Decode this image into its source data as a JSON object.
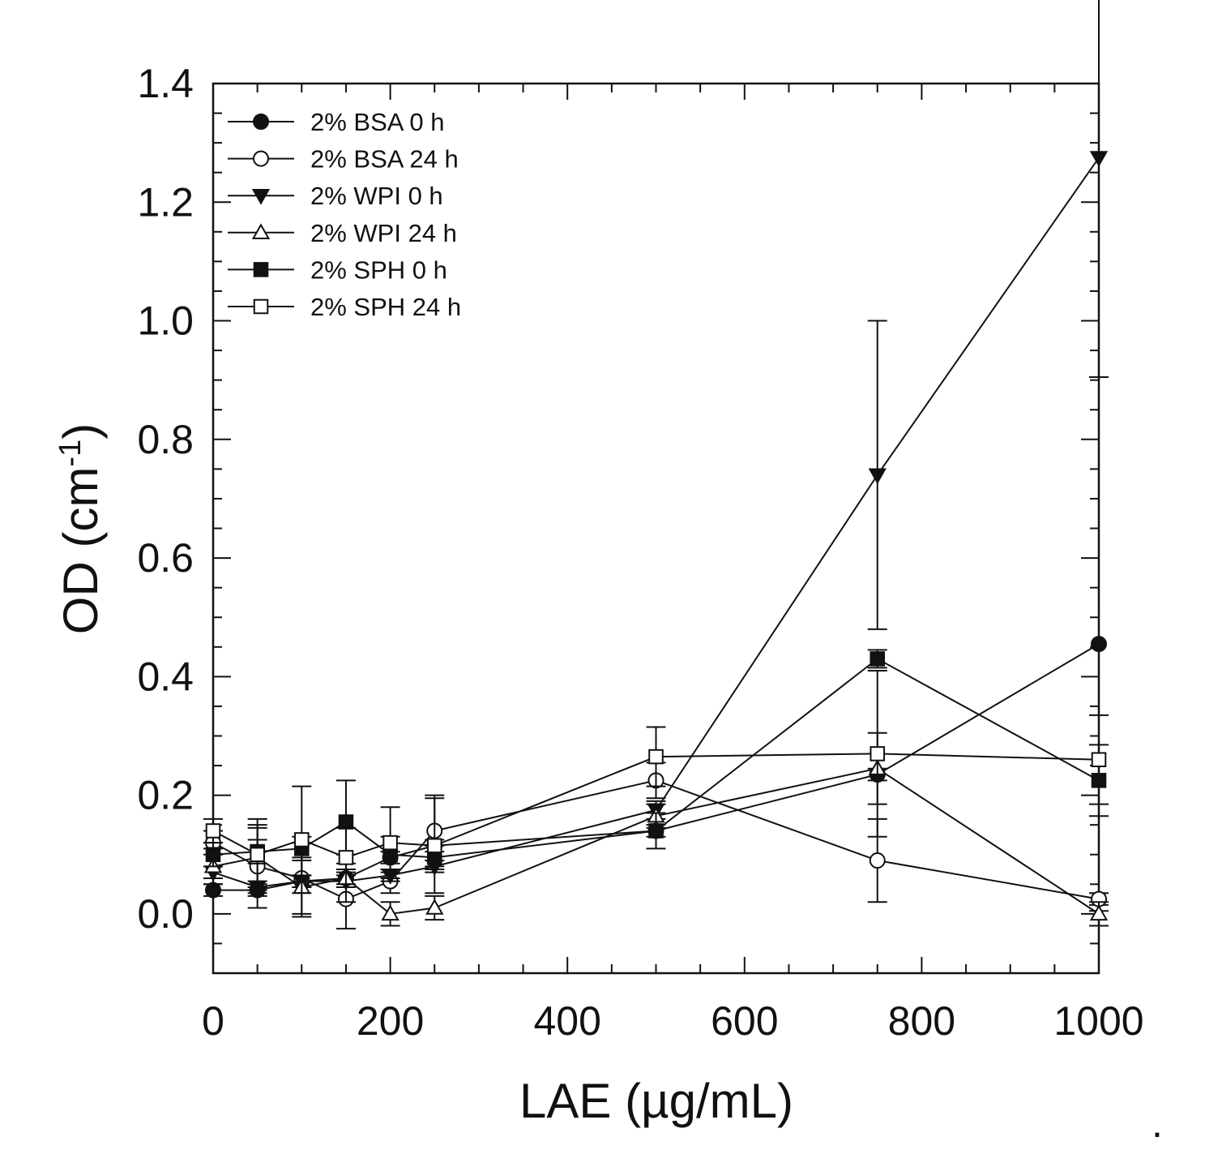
{
  "chart_data": {
    "type": "line",
    "title": "",
    "xlabel": "LAE (µg/mL)",
    "ylabel": "OD (cm",
    "ylabel_sup": "-1",
    "ylabel_end": ")",
    "xlim": [
      0,
      1000
    ],
    "ylim": [
      -0.1,
      1.4
    ],
    "x_ticks": [
      0,
      200,
      400,
      600,
      800,
      1000
    ],
    "x_tick_labels": [
      "0",
      "200",
      "400",
      "600",
      "800",
      "1000"
    ],
    "y_ticks": [
      0.0,
      0.2,
      0.4,
      0.6,
      0.8,
      1.0,
      1.2,
      1.4
    ],
    "y_tick_labels": [
      "0.0",
      "0.2",
      "0.4",
      "0.6",
      "0.8",
      "1.0",
      "1.2",
      "1.4"
    ],
    "grid": false,
    "legend_position": "top-left",
    "x": [
      0,
      50,
      100,
      150,
      200,
      250,
      500,
      750,
      1000
    ],
    "series": [
      {
        "name": "2% BSA 0 h",
        "marker": "circle",
        "filled": true,
        "values": [
          0.04,
          0.04,
          0.055,
          0.06,
          0.095,
          0.115,
          0.14,
          0.235,
          0.455
        ],
        "errors": [
          0.01,
          0.01,
          0.01,
          0.01,
          0.01,
          0.01,
          0.01,
          0.01,
          0.45
        ]
      },
      {
        "name": "2% BSA 24 h",
        "marker": "circle",
        "filled": false,
        "values": [
          0.12,
          0.08,
          0.06,
          0.025,
          0.055,
          0.14,
          0.225,
          0.09,
          0.025
        ],
        "errors": [
          0.02,
          0.07,
          0.06,
          0.05,
          0.02,
          0.06,
          0.03,
          0.07,
          0.01
        ]
      },
      {
        "name": "2% WPI 0 h",
        "marker": "triangle-down",
        "filled": true,
        "values": [
          0.07,
          0.045,
          0.055,
          0.055,
          0.065,
          0.08,
          0.175,
          0.74,
          1.275
        ],
        "errors": [
          0.01,
          0.01,
          0.01,
          0.01,
          0.01,
          0.01,
          0.015,
          0.26,
          0.37
        ]
      },
      {
        "name": "2% WPI 24 h",
        "marker": "triangle-up",
        "filled": false,
        "values": [
          0.08,
          0.095,
          0.045,
          0.06,
          0.0,
          0.01,
          0.165,
          0.245,
          0.0
        ],
        "errors": [
          0.03,
          0.05,
          0.05,
          0.04,
          0.02,
          0.02,
          0.02,
          0.06,
          0.02
        ]
      },
      {
        "name": "2% SPH 0 h",
        "marker": "square",
        "filled": true,
        "values": [
          0.1,
          0.105,
          0.11,
          0.155,
          0.1,
          0.095,
          0.14,
          0.43,
          0.225
        ],
        "errors": [
          0.02,
          0.02,
          0.02,
          0.07,
          0.03,
          0.02,
          0.03,
          0.015,
          0.06
        ]
      },
      {
        "name": "2% SPH 24 h",
        "marker": "square",
        "filled": false,
        "values": [
          0.14,
          0.1,
          0.125,
          0.095,
          0.12,
          0.115,
          0.265,
          0.27,
          0.26
        ],
        "errors": [
          0.02,
          0.06,
          0.09,
          0.05,
          0.06,
          0.08,
          0.05,
          0.14,
          0.075
        ]
      }
    ],
    "footnote": "."
  }
}
